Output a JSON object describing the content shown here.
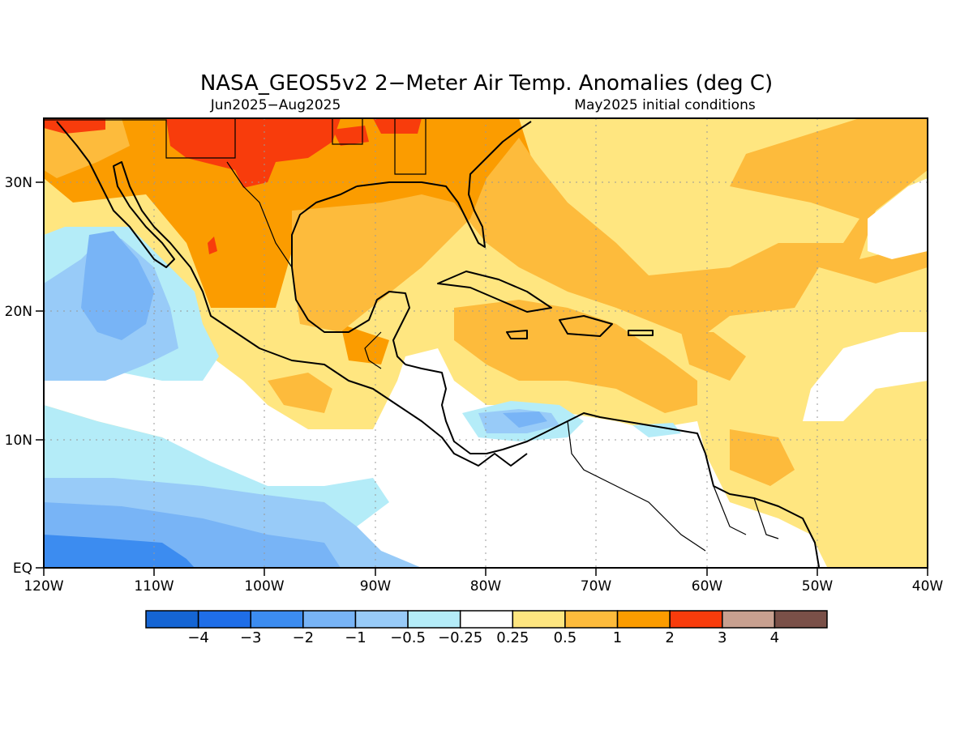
{
  "title": "NASA_GEOS5v2 2−Meter Air Temp. Anomalies (deg C)",
  "subtitle_left": "Jun2025−Aug2025",
  "subtitle_right": "May2025 initial conditions",
  "map": {
    "lon_range": [
      -120,
      -40
    ],
    "lat_range": [
      0,
      35
    ],
    "lon_ticks": [
      "120W",
      "110W",
      "100W",
      "90W",
      "80W",
      "70W",
      "60W",
      "50W",
      "40W"
    ],
    "lat_ticks": [
      "EQ",
      "10N",
      "20N",
      "30N"
    ],
    "grid": true
  },
  "colorbar": {
    "labels": [
      "−4",
      "−3",
      "−2",
      "−1",
      "−0.5",
      "−0.25",
      "0.25",
      "0.5",
      "1",
      "2",
      "3",
      "4"
    ],
    "colors": [
      "#1565d4",
      "#1f6ee8",
      "#3c8cf0",
      "#78b4f6",
      "#98cbf8",
      "#b4ecf8",
      "#ffffff",
      "#fee680",
      "#fdbb3c",
      "#fb9c00",
      "#f83c0c",
      "#c8a090",
      "#7a5048"
    ]
  }
}
